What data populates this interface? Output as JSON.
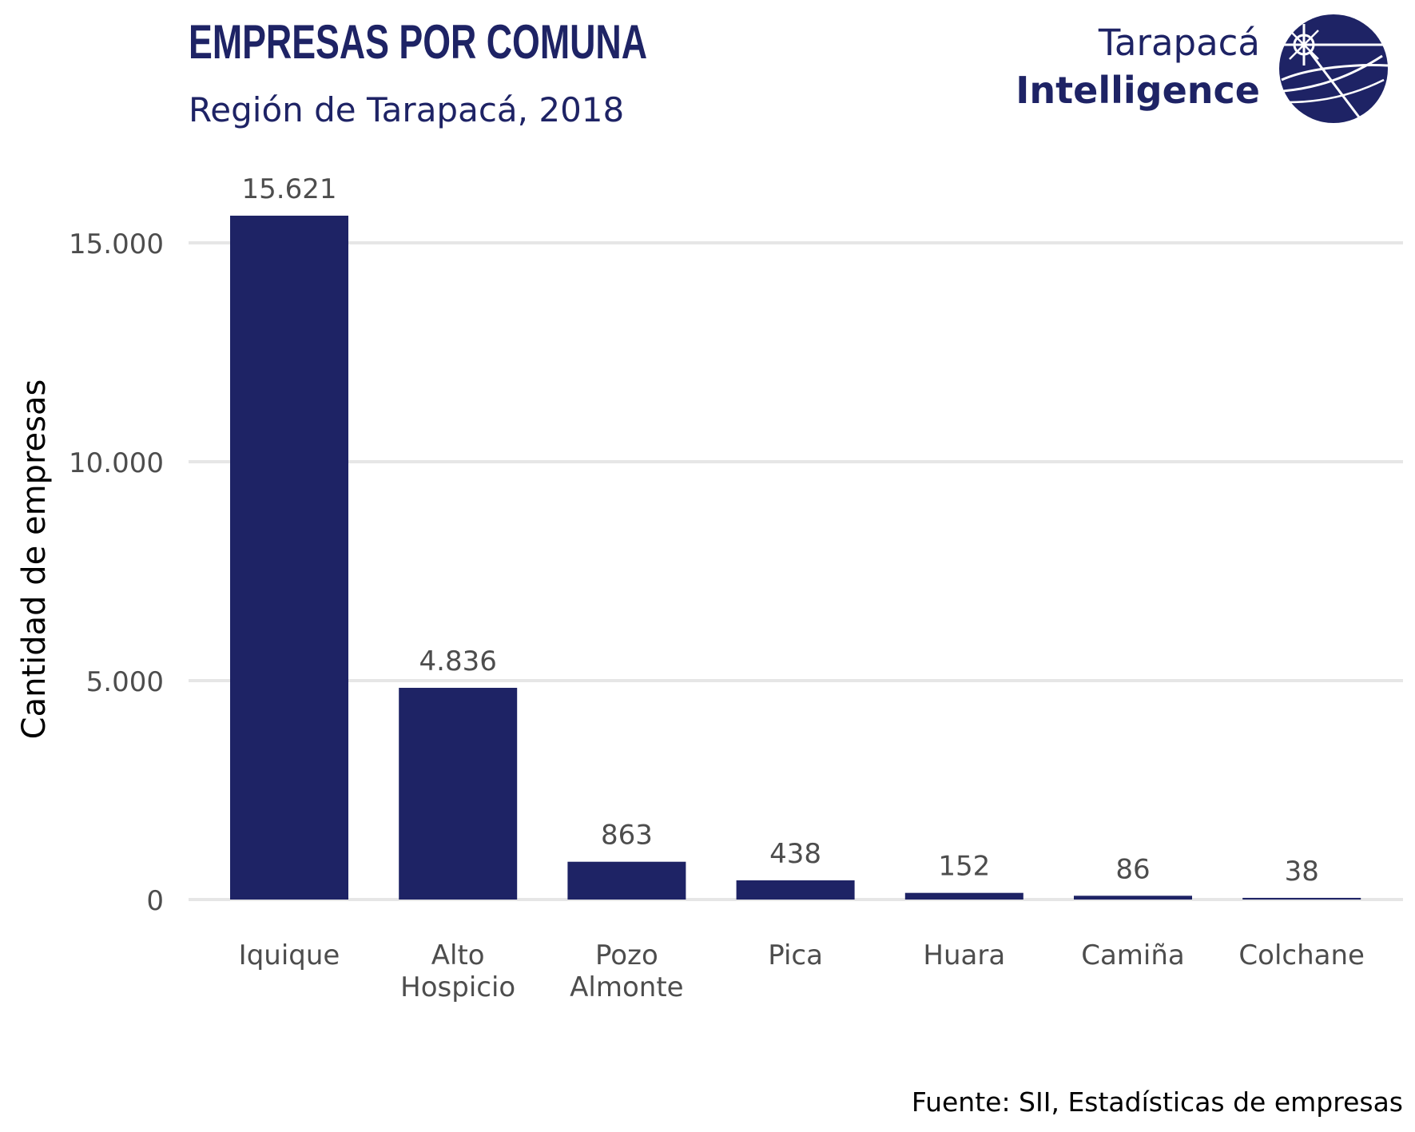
{
  "logo": {
    "line1": "Tarapacá",
    "line2": "Intelligence"
  },
  "source": "Fuente: SII, Estadísticas de empresas",
  "colors": {
    "bar": "#1e2365",
    "title": "#1e2365",
    "grid": "#e6e6e6",
    "tick_text": "#4d4d4d",
    "axis_title": "#000000"
  },
  "chart_data": {
    "type": "bar",
    "title": "EMPRESAS POR COMUNA",
    "subtitle": "Región de Tarapacá, 2018",
    "xlabel": "",
    "ylabel": "Cantidad de empresas",
    "categories": [
      [
        "Iquique"
      ],
      [
        "Alto",
        "Hospicio"
      ],
      [
        "Pozo",
        "Almonte"
      ],
      [
        "Pica"
      ],
      [
        "Huara"
      ],
      [
        "Camiña"
      ],
      [
        "Colchane"
      ]
    ],
    "values": [
      15621,
      4836,
      863,
      438,
      152,
      86,
      38
    ],
    "value_labels": [
      "15.621",
      "4.836",
      "863",
      "438",
      "152",
      "86",
      "38"
    ],
    "ylim": [
      0,
      15621
    ],
    "yticks": [
      0,
      5000,
      10000,
      15000
    ],
    "ytick_labels": [
      "0",
      "5.000",
      "10.000",
      "15.000"
    ],
    "grid": "horizontal"
  }
}
